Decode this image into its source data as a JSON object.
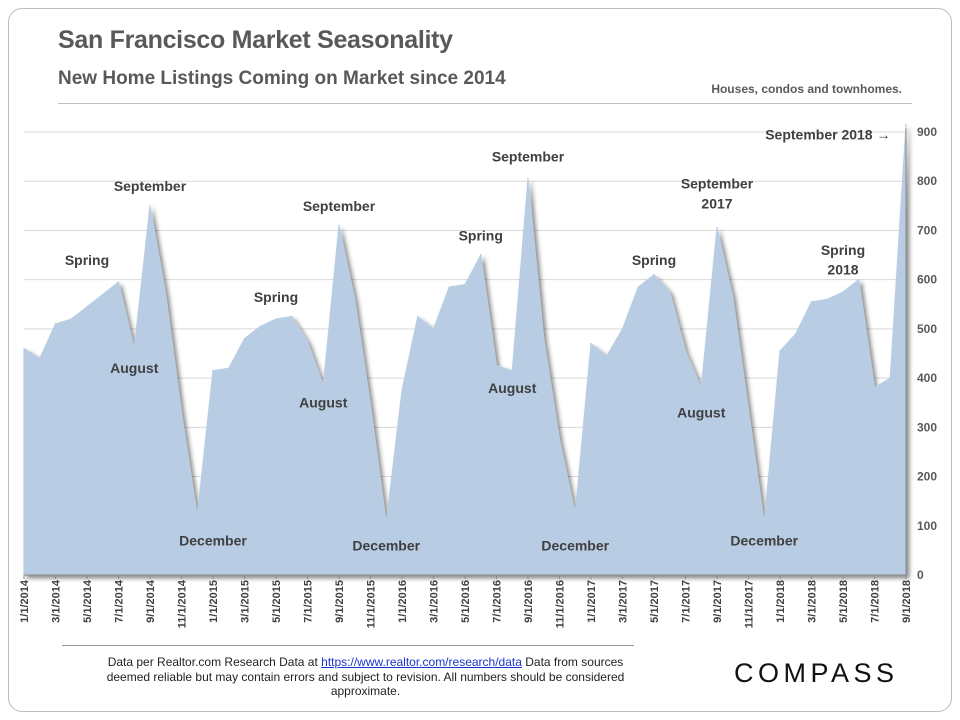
{
  "header": {
    "title": "San Francisco Market Seasonality",
    "subtitle": "New Home Listings Coming on Market since 2014",
    "note": "Houses, condos and townhomes."
  },
  "footer": {
    "text_before": "Data per Realtor.com Research Data at",
    "link": "https://www.realtor.com/research/data",
    "text_after": "Data from sources deemed reliable but may contain errors and subject to revision.  All numbers should be considered approximate."
  },
  "logo": "COMPASS",
  "chart_data": {
    "type": "area",
    "title": "",
    "xlabel": "",
    "ylabel": "",
    "ylim": [
      0,
      900
    ],
    "yticks": [
      0,
      100,
      200,
      300,
      400,
      500,
      600,
      700,
      800,
      900
    ],
    "grid": true,
    "x_tick_labels": [
      "1/1/2014",
      "3/1/2014",
      "5/1/2014",
      "7/1/2014",
      "9/1/2014",
      "11/1/2014",
      "1/1/2015",
      "3/1/2015",
      "5/1/2015",
      "7/1/2015",
      "9/1/2015",
      "11/1/2015",
      "1/1/2016",
      "3/1/2016",
      "5/1/2016",
      "7/1/2016",
      "9/1/2016",
      "11/1/2016",
      "1/1/2017",
      "3/1/2017",
      "5/1/2017",
      "7/1/2017",
      "9/1/2017",
      "11/1/2017",
      "1/1/2018",
      "3/1/2018",
      "5/1/2018",
      "7/1/2018",
      "9/1/2018"
    ],
    "x": [
      "2014-01",
      "2014-02",
      "2014-03",
      "2014-04",
      "2014-05",
      "2014-06",
      "2014-07",
      "2014-08",
      "2014-09",
      "2014-10",
      "2014-11",
      "2014-12",
      "2015-01",
      "2015-02",
      "2015-03",
      "2015-04",
      "2015-05",
      "2015-06",
      "2015-07",
      "2015-08",
      "2015-09",
      "2015-10",
      "2015-11",
      "2015-12",
      "2016-01",
      "2016-02",
      "2016-03",
      "2016-04",
      "2016-05",
      "2016-06",
      "2016-07",
      "2016-08",
      "2016-09",
      "2016-10",
      "2016-11",
      "2016-12",
      "2017-01",
      "2017-02",
      "2017-03",
      "2017-04",
      "2017-05",
      "2017-06",
      "2017-07",
      "2017-08",
      "2017-09",
      "2017-10",
      "2017-11",
      "2017-12",
      "2018-01",
      "2018-02",
      "2018-03",
      "2018-04",
      "2018-05",
      "2018-06",
      "2018-07",
      "2018-08",
      "2018-09"
    ],
    "values": [
      460,
      440,
      510,
      520,
      545,
      570,
      595,
      460,
      750,
      570,
      330,
      120,
      415,
      420,
      480,
      505,
      520,
      525,
      475,
      385,
      710,
      560,
      345,
      105,
      375,
      525,
      500,
      585,
      590,
      650,
      425,
      415,
      805,
      480,
      275,
      125,
      470,
      445,
      500,
      585,
      610,
      575,
      455,
      380,
      705,
      565,
      335,
      105,
      455,
      490,
      555,
      560,
      575,
      600,
      380,
      400,
      915
    ],
    "annotations": [
      {
        "text": "Spring",
        "x": "2014-05",
        "y": 630
      },
      {
        "text": "September",
        "x": "2014-09",
        "y": 780
      },
      {
        "text": "August",
        "x": "2014-08",
        "y": 410
      },
      {
        "text": "December",
        "x": "2015-01",
        "y": 60
      },
      {
        "text": "Spring",
        "x": "2015-05",
        "y": 555
      },
      {
        "text": "August",
        "x": "2015-08",
        "y": 340
      },
      {
        "text": "September",
        "x": "2015-09",
        "y": 740
      },
      {
        "text": "December",
        "x": "2015-12",
        "y": 50
      },
      {
        "text": "Spring",
        "x": "2016-06",
        "y": 680
      },
      {
        "text": "September",
        "x": "2016-09",
        "y": 840
      },
      {
        "text": "August",
        "x": "2016-08",
        "y": 370
      },
      {
        "text": "December",
        "x": "2016-12",
        "y": 50
      },
      {
        "text": "Spring",
        "x": "2017-05",
        "y": 630
      },
      {
        "text": "September",
        "x": "2017-09",
        "y": 785
      },
      {
        "text": "2017",
        "x": "2017-09",
        "y": 745
      },
      {
        "text": "August",
        "x": "2017-08",
        "y": 320
      },
      {
        "text": "December",
        "x": "2017-12",
        "y": 60
      },
      {
        "text": "Spring",
        "x": "2018-05",
        "y": 650
      },
      {
        "text": "2018",
        "x": "2018-05",
        "y": 610
      },
      {
        "text": "September 2018 →",
        "x": "2018-07",
        "y": 885
      }
    ]
  }
}
